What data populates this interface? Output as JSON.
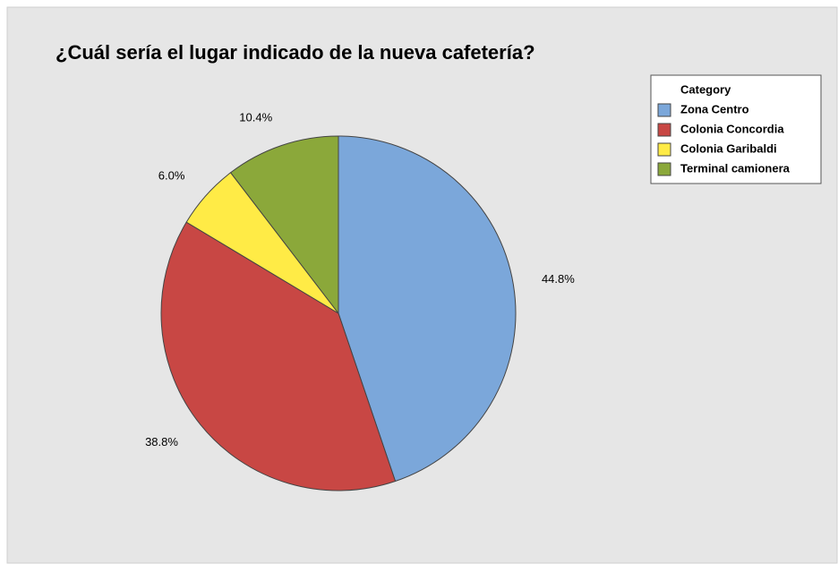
{
  "chart_data": {
    "type": "pie",
    "title": "¿Cuál sería el lugar indicado de la nueva cafetería?",
    "legend_title": "Category",
    "categories": [
      "Zona Centro",
      "Colonia Concordia",
      "Colonia Garibaldi",
      "Terminal camionera"
    ],
    "values": [
      44.8,
      38.8,
      6.0,
      10.4
    ],
    "value_labels": [
      "44.8%",
      "38.8%",
      "6.0%",
      "10.4%"
    ],
    "colors": [
      "#7ba7da",
      "#c84744",
      "#ffeb46",
      "#8ba83a"
    ],
    "legend_position": "upper right"
  }
}
